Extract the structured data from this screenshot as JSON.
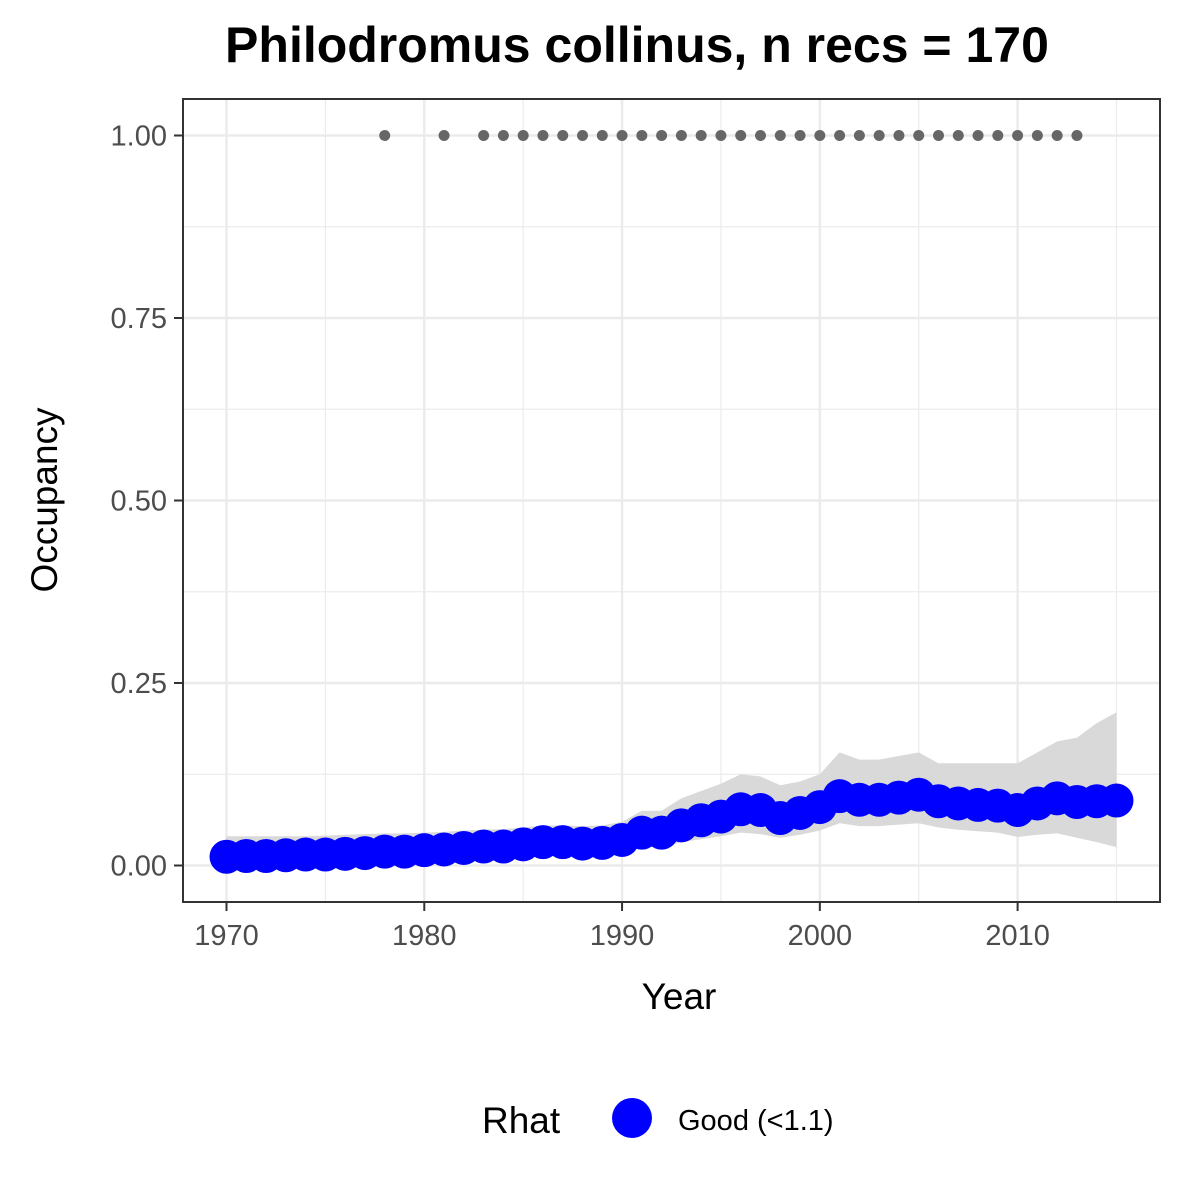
{
  "chart_data": {
    "type": "line",
    "title": "Philodromus collinus, n recs = 170",
    "xlabel": "Year",
    "ylabel": "Occupancy",
    "xlim": [
      1967.8,
      2017.2
    ],
    "ylim": [
      -0.05,
      1.05
    ],
    "x_ticks": [
      1970,
      1980,
      1990,
      2000,
      2010
    ],
    "x_tick_labels": [
      "1970",
      "1980",
      "1990",
      "2000",
      "2010"
    ],
    "y_ticks": [
      0,
      0.25,
      0.5,
      0.75,
      1.0
    ],
    "y_tick_labels": [
      "0.00",
      "0.25",
      "0.50",
      "0.75",
      "1.00"
    ],
    "grid": true,
    "legend": {
      "title": "Rhat",
      "position": "bottom",
      "entries": [
        {
          "label": "Good (<1.1)",
          "color": "#0000ff"
        }
      ]
    },
    "colors": {
      "estimate": "#0000ff",
      "ribbon": "#d9d9d9",
      "records": "#666666",
      "grid": "#ebebeb",
      "border": "#333333"
    },
    "series": [
      {
        "name": "Good (<1.1)",
        "role": "estimate",
        "x": [
          1970,
          1971,
          1972,
          1973,
          1974,
          1975,
          1976,
          1977,
          1978,
          1979,
          1980,
          1981,
          1982,
          1983,
          1984,
          1985,
          1986,
          1987,
          1988,
          1989,
          1990,
          1991,
          1992,
          1993,
          1994,
          1995,
          1996,
          1997,
          1998,
          1999,
          2000,
          2001,
          2002,
          2003,
          2004,
          2005,
          2006,
          2007,
          2008,
          2009,
          2010,
          2011,
          2012,
          2013,
          2014,
          2015
        ],
        "y": [
          0.012,
          0.013,
          0.013,
          0.014,
          0.015,
          0.015,
          0.016,
          0.017,
          0.019,
          0.019,
          0.021,
          0.022,
          0.024,
          0.026,
          0.026,
          0.029,
          0.032,
          0.032,
          0.03,
          0.031,
          0.035,
          0.045,
          0.045,
          0.055,
          0.062,
          0.067,
          0.077,
          0.076,
          0.065,
          0.072,
          0.08,
          0.095,
          0.09,
          0.09,
          0.093,
          0.097,
          0.088,
          0.085,
          0.083,
          0.082,
          0.076,
          0.085,
          0.092,
          0.087,
          0.088,
          0.089
        ],
        "lower": [
          0.005,
          0.005,
          0.006,
          0.006,
          0.007,
          0.007,
          0.008,
          0.008,
          0.009,
          0.009,
          0.01,
          0.011,
          0.012,
          0.013,
          0.013,
          0.015,
          0.017,
          0.017,
          0.016,
          0.016,
          0.019,
          0.025,
          0.025,
          0.032,
          0.036,
          0.04,
          0.045,
          0.043,
          0.038,
          0.042,
          0.048,
          0.058,
          0.054,
          0.054,
          0.056,
          0.058,
          0.052,
          0.049,
          0.047,
          0.045,
          0.039,
          0.042,
          0.044,
          0.038,
          0.032,
          0.025
        ],
        "upper": [
          0.04,
          0.04,
          0.04,
          0.04,
          0.04,
          0.041,
          0.042,
          0.043,
          0.044,
          0.044,
          0.045,
          0.046,
          0.048,
          0.049,
          0.05,
          0.052,
          0.055,
          0.055,
          0.054,
          0.055,
          0.06,
          0.075,
          0.075,
          0.092,
          0.102,
          0.112,
          0.125,
          0.122,
          0.11,
          0.115,
          0.125,
          0.155,
          0.145,
          0.145,
          0.15,
          0.155,
          0.14,
          0.14,
          0.14,
          0.14,
          0.14,
          0.155,
          0.17,
          0.175,
          0.195,
          0.21
        ]
      },
      {
        "name": "",
        "role": "records",
        "x": [
          1978,
          1981,
          1983,
          1984,
          1985,
          1986,
          1987,
          1988,
          1989,
          1990,
          1991,
          1992,
          1993,
          1994,
          1995,
          1996,
          1997,
          1998,
          1999,
          2000,
          2001,
          2002,
          2003,
          2004,
          2005,
          2006,
          2007,
          2008,
          2009,
          2010,
          2011,
          2012,
          2013
        ],
        "y": [
          1,
          1,
          1,
          1,
          1,
          1,
          1,
          1,
          1,
          1,
          1,
          1,
          1,
          1,
          1,
          1,
          1,
          1,
          1,
          1,
          1,
          1,
          1,
          1,
          1,
          1,
          1,
          1,
          1,
          1,
          1,
          1,
          1
        ]
      }
    ]
  }
}
